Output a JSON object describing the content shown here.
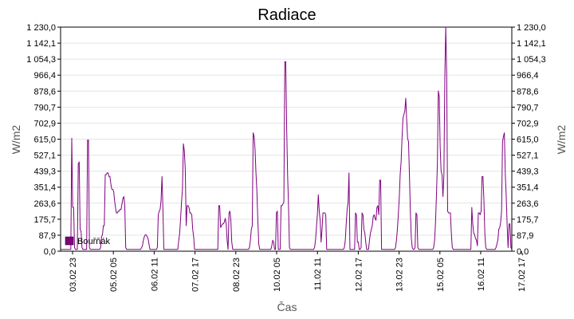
{
  "chart_data": {
    "type": "line",
    "title": "Radiace",
    "xlabel": "Čas",
    "ylabel": "W/m2",
    "ylim": [
      0,
      1230
    ],
    "y_ticks": [
      "0,0",
      "87,9",
      "175,7",
      "263,6",
      "351,4",
      "439,3",
      "527,1",
      "615,0",
      "702,9",
      "790,7",
      "878,6",
      "966,4",
      "1 054,3",
      "1 142,1",
      "1 230,0"
    ],
    "x_ticks": [
      "03.02 23",
      "05.02 05",
      "06.02 11",
      "07.02 17",
      "08.02 23",
      "10.02 05",
      "11.02 11",
      "12.02 17",
      "13.02 23",
      "15.02 05",
      "16.02 11",
      "17.02 17"
    ],
    "grid": true,
    "legend_position": "bottom-left",
    "series": [
      {
        "name": "Bouřňák",
        "color": "#800080",
        "values": [
          10,
          10,
          10,
          10,
          10,
          10,
          10,
          10,
          10,
          10,
          10,
          10,
          620,
          240,
          240,
          20,
          10,
          10,
          10,
          480,
          490,
          120,
          110,
          20,
          10,
          10,
          10,
          10,
          10,
          610,
          610,
          20,
          10,
          10,
          10,
          10,
          10,
          10,
          10,
          10,
          10,
          10,
          10,
          20,
          80,
          90,
          140,
          140,
          420,
          420,
          430,
          430,
          410,
          410,
          370,
          340,
          340,
          330,
          280,
          240,
          210,
          210,
          220,
          220,
          230,
          230,
          260,
          290,
          300,
          250,
          20,
          10,
          10,
          10,
          10,
          10,
          10,
          10,
          10,
          10,
          10,
          10,
          10,
          10,
          10,
          10,
          10,
          20,
          30,
          60,
          80,
          90,
          90,
          80,
          70,
          40,
          10,
          10,
          10,
          10,
          10,
          10,
          10,
          10,
          20,
          200,
          220,
          230,
          280,
          410,
          230,
          10,
          10,
          10,
          10,
          10,
          10,
          10,
          10,
          10,
          10,
          10,
          10,
          10,
          10,
          10,
          10,
          60,
          100,
          180,
          270,
          340,
          590,
          550,
          450,
          140,
          250,
          250,
          240,
          210,
          210,
          200,
          120,
          80,
          10,
          10,
          10,
          10,
          10,
          10,
          10,
          10,
          10,
          10,
          10,
          10,
          10,
          10,
          10,
          10,
          10,
          10,
          10,
          10,
          10,
          10,
          10,
          10,
          10,
          10,
          250,
          250,
          130,
          140,
          150,
          150,
          160,
          180,
          150,
          60,
          10,
          210,
          220,
          170,
          50,
          10,
          10,
          10,
          10,
          10,
          10,
          10,
          10,
          10,
          10,
          10,
          10,
          10,
          10,
          10,
          10,
          10,
          10,
          20,
          60,
          120,
          140,
          650,
          630,
          560,
          430,
          330,
          170,
          40,
          10,
          10,
          10,
          10,
          10,
          10,
          10,
          10,
          10,
          10,
          10,
          10,
          10,
          30,
          60,
          50,
          10,
          10,
          210,
          220,
          10,
          10,
          10,
          250,
          250,
          260,
          270,
          1040,
          1040,
          680,
          420,
          250,
          20,
          10,
          10,
          10,
          10,
          10,
          10,
          10,
          10,
          10,
          10,
          10,
          10,
          10,
          10,
          10,
          10,
          10,
          10,
          10,
          10,
          10,
          10,
          10,
          10,
          10,
          10,
          20,
          60,
          130,
          200,
          310,
          220,
          170,
          50,
          120,
          210,
          210,
          210,
          200,
          10,
          10,
          10,
          10,
          10,
          10,
          10,
          10,
          10,
          10,
          10,
          10,
          10,
          10,
          10,
          10,
          10,
          10,
          10,
          20,
          60,
          150,
          230,
          270,
          430,
          10,
          10,
          10,
          10,
          10,
          10,
          210,
          200,
          50,
          50,
          10,
          10,
          20,
          210,
          200,
          120,
          100,
          50,
          10,
          10,
          10,
          60,
          100,
          120,
          140,
          190,
          200,
          180,
          170,
          240,
          250,
          200,
          390,
          390,
          10,
          10,
          10,
          10,
          10,
          10,
          10,
          10,
          10,
          10,
          10,
          10,
          10,
          10,
          10,
          20,
          60,
          120,
          200,
          290,
          420,
          490,
          620,
          730,
          750,
          770,
          840,
          720,
          620,
          600,
          410,
          210,
          70,
          20,
          10,
          10,
          20,
          210,
          200,
          20,
          10,
          10,
          10,
          10,
          10,
          10,
          10,
          10,
          10,
          10,
          10,
          10,
          10,
          10,
          10,
          10,
          20,
          60,
          160,
          310,
          480,
          880,
          850,
          570,
          440,
          420,
          300,
          420,
          960,
          1230,
          970,
          220,
          210,
          210,
          210,
          100,
          20,
          10,
          10,
          10,
          10,
          10,
          10,
          10,
          10,
          10,
          10,
          10,
          10,
          10,
          10,
          10,
          10,
          10,
          10,
          10,
          10,
          240,
          150,
          100,
          90,
          70,
          60,
          30,
          210,
          210,
          200,
          220,
          410,
          410,
          280,
          100,
          20,
          10,
          10,
          10,
          10,
          10,
          10,
          10,
          10,
          10,
          10,
          20,
          40,
          60,
          120,
          130,
          160,
          220,
          600,
          630,
          650,
          420,
          300,
          140,
          20,
          150,
          150,
          20,
          10
        ]
      }
    ]
  }
}
